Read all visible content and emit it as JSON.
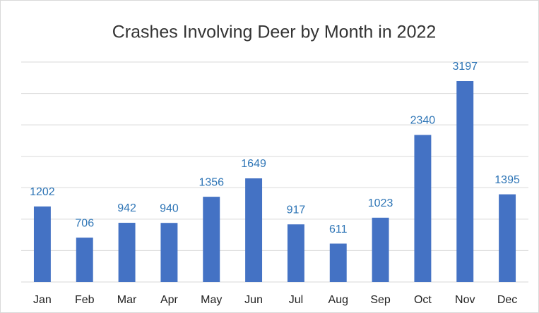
{
  "chart_data": {
    "type": "bar",
    "title": "Crashes Involving Deer by Month in 2022",
    "categories": [
      "Jan",
      "Feb",
      "Mar",
      "Apr",
      "May",
      "Jun",
      "Jul",
      "Aug",
      "Sep",
      "Oct",
      "Nov",
      "Dec"
    ],
    "values": [
      1202,
      706,
      942,
      940,
      1356,
      1649,
      917,
      611,
      1023,
      2340,
      3197,
      1395
    ],
    "color": "#4472c4",
    "ylim": [
      0,
      3500
    ],
    "yticks": [
      0,
      500,
      1000,
      1500,
      2000,
      2500,
      3000,
      3500
    ],
    "grid": true
  }
}
